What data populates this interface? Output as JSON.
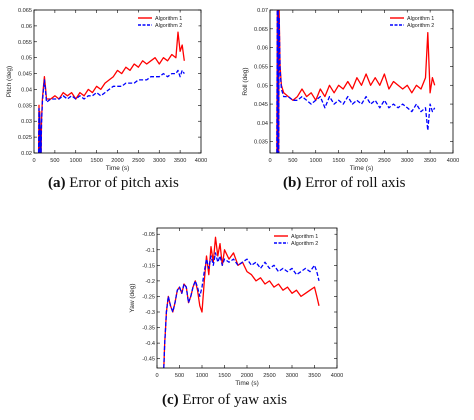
{
  "chart_data": [
    {
      "type": "line",
      "panel": "a",
      "caption_tag": "(a)",
      "caption_text": "Error of pitch axis",
      "xlabel": "Time (s)",
      "ylabel": "Pitch (deg)",
      "xlim": [
        0,
        4000
      ],
      "ylim": [
        0.02,
        0.065
      ],
      "xticks": [
        0,
        500,
        1000,
        1500,
        2000,
        2500,
        3000,
        3500,
        4000
      ],
      "yticks": [
        0.02,
        0.025,
        0.03,
        0.035,
        0.04,
        0.045,
        0.05,
        0.055,
        0.06,
        0.065
      ],
      "xtick_labels": [
        "0",
        "500",
        "1000",
        "1500",
        "2000",
        "2500",
        "3000",
        "3500",
        "4000"
      ],
      "ytick_labels": [
        "0.02",
        "0.025",
        "0.03",
        "0.035",
        "0.04",
        "0.045",
        "0.05",
        "0.055",
        "0.06",
        "0.065"
      ],
      "legend_position": "top-right",
      "grid": false,
      "series": [
        {
          "name": "Algorithm 1",
          "color": "#ff0000",
          "dash": "solid",
          "x": [
            110,
            120,
            130,
            140,
            150,
            160,
            170,
            180,
            200,
            220,
            250,
            280,
            300,
            400,
            500,
            600,
            700,
            800,
            900,
            1000,
            1100,
            1200,
            1300,
            1400,
            1500,
            1600,
            1700,
            1800,
            1900,
            2000,
            2100,
            2200,
            2300,
            2400,
            2500,
            2600,
            2700,
            2800,
            2900,
            3000,
            3100,
            3200,
            3300,
            3400,
            3450,
            3500,
            3550,
            3600
          ],
          "y": [
            0.02,
            0.035,
            0.02,
            0.033,
            0.02,
            0.028,
            0.02,
            0.03,
            0.037,
            0.04,
            0.044,
            0.04,
            0.037,
            0.037,
            0.038,
            0.037,
            0.039,
            0.038,
            0.039,
            0.037,
            0.039,
            0.038,
            0.04,
            0.039,
            0.041,
            0.04,
            0.042,
            0.043,
            0.044,
            0.046,
            0.045,
            0.047,
            0.046,
            0.048,
            0.047,
            0.049,
            0.048,
            0.049,
            0.05,
            0.048,
            0.05,
            0.049,
            0.051,
            0.05,
            0.058,
            0.052,
            0.054,
            0.049
          ]
        },
        {
          "name": "Algorithm 2",
          "color": "#0000ff",
          "dash": "dashed",
          "x": [
            110,
            120,
            130,
            140,
            150,
            160,
            170,
            180,
            200,
            220,
            250,
            280,
            300,
            400,
            500,
            600,
            700,
            800,
            900,
            1000,
            1100,
            1200,
            1300,
            1400,
            1500,
            1600,
            1700,
            1800,
            1900,
            2000,
            2100,
            2200,
            2300,
            2400,
            2500,
            2600,
            2700,
            2800,
            2900,
            3000,
            3100,
            3200,
            3300,
            3400,
            3450,
            3500,
            3550,
            3600
          ],
          "y": [
            0.02,
            0.034,
            0.02,
            0.032,
            0.02,
            0.027,
            0.02,
            0.029,
            0.036,
            0.039,
            0.043,
            0.039,
            0.036,
            0.037,
            0.037,
            0.037,
            0.038,
            0.037,
            0.038,
            0.037,
            0.038,
            0.037,
            0.038,
            0.038,
            0.039,
            0.038,
            0.039,
            0.04,
            0.041,
            0.041,
            0.041,
            0.042,
            0.042,
            0.042,
            0.043,
            0.043,
            0.043,
            0.044,
            0.044,
            0.044,
            0.045,
            0.044,
            0.045,
            0.045,
            0.046,
            0.044,
            0.046,
            0.045
          ]
        }
      ]
    },
    {
      "type": "line",
      "panel": "b",
      "caption_tag": "(b)",
      "caption_text": "Error of roll axis",
      "xlabel": "Time (s)",
      "ylabel": "Roll (deg)",
      "xlim": [
        0,
        4000
      ],
      "ylim": [
        0.032,
        0.07
      ],
      "xticks": [
        0,
        500,
        1000,
        1500,
        2000,
        2500,
        3000,
        3500,
        4000
      ],
      "yticks": [
        0.035,
        0.04,
        0.045,
        0.05,
        0.055,
        0.06,
        0.065,
        0.07
      ],
      "xtick_labels": [
        "0",
        "500",
        "1000",
        "1500",
        "2000",
        "2500",
        "3000",
        "3500",
        "4000"
      ],
      "ytick_labels": [
        "0.035",
        "0.04",
        "0.045",
        "0.05",
        "0.055",
        "0.06",
        "0.065",
        "0.07"
      ],
      "legend_position": "top-right",
      "grid": false,
      "series": [
        {
          "name": "Algorithm 1",
          "color": "#ff0000",
          "dash": "solid",
          "x": [
            150,
            160,
            170,
            180,
            190,
            200,
            220,
            250,
            300,
            400,
            500,
            600,
            700,
            800,
            900,
            1000,
            1100,
            1200,
            1300,
            1400,
            1500,
            1600,
            1700,
            1800,
            1900,
            2000,
            2100,
            2200,
            2300,
            2400,
            2500,
            2600,
            2700,
            2800,
            2900,
            3000,
            3100,
            3200,
            3300,
            3400,
            3450,
            3500,
            3550,
            3600
          ],
          "y": [
            0.032,
            0.07,
            0.032,
            0.07,
            0.032,
            0.07,
            0.055,
            0.05,
            0.048,
            0.047,
            0.046,
            0.047,
            0.049,
            0.047,
            0.048,
            0.046,
            0.049,
            0.047,
            0.05,
            0.048,
            0.05,
            0.049,
            0.051,
            0.049,
            0.052,
            0.05,
            0.053,
            0.05,
            0.052,
            0.05,
            0.053,
            0.049,
            0.051,
            0.05,
            0.049,
            0.05,
            0.048,
            0.05,
            0.049,
            0.052,
            0.064,
            0.048,
            0.052,
            0.05
          ]
        },
        {
          "name": "Algorithm 2",
          "color": "#0000ff",
          "dash": "dashed",
          "x": [
            150,
            160,
            170,
            180,
            190,
            200,
            220,
            250,
            300,
            400,
            500,
            600,
            700,
            800,
            900,
            1000,
            1100,
            1200,
            1300,
            1400,
            1500,
            1600,
            1700,
            1800,
            1900,
            2000,
            2100,
            2200,
            2300,
            2400,
            2500,
            2600,
            2700,
            2800,
            2900,
            3000,
            3100,
            3200,
            3300,
            3400,
            3450,
            3500,
            3550,
            3600
          ],
          "y": [
            0.032,
            0.07,
            0.032,
            0.07,
            0.032,
            0.068,
            0.054,
            0.049,
            0.047,
            0.047,
            0.046,
            0.046,
            0.047,
            0.046,
            0.045,
            0.046,
            0.047,
            0.044,
            0.047,
            0.045,
            0.046,
            0.045,
            0.047,
            0.045,
            0.046,
            0.045,
            0.047,
            0.045,
            0.046,
            0.044,
            0.046,
            0.044,
            0.045,
            0.044,
            0.045,
            0.044,
            0.043,
            0.045,
            0.043,
            0.044,
            0.038,
            0.045,
            0.043,
            0.044
          ]
        }
      ]
    },
    {
      "type": "line",
      "panel": "c",
      "caption_tag": "(c)",
      "caption_text": "Error of yaw axis",
      "xlabel": "Time (s)",
      "ylabel": "Yaw (deg)",
      "xlim": [
        0,
        4000
      ],
      "ylim": [
        -0.48,
        -0.03
      ],
      "xticks": [
        0,
        500,
        1000,
        1500,
        2000,
        2500,
        3000,
        3500,
        4000
      ],
      "yticks": [
        -0.45,
        -0.4,
        -0.35,
        -0.3,
        -0.25,
        -0.2,
        -0.15,
        -0.1,
        -0.05
      ],
      "xtick_labels": [
        "0",
        "500",
        "1000",
        "1500",
        "2000",
        "2500",
        "3000",
        "3500",
        "4000"
      ],
      "ytick_labels": [
        "-0.45",
        "-0.4",
        "-0.35",
        "-0.3",
        "-0.25",
        "-0.2",
        "-0.15",
        "-0.1",
        "-0.05"
      ],
      "legend_position": "top-right",
      "grid": false,
      "series": [
        {
          "name": "Algorithm 1",
          "color": "#ff0000",
          "dash": "solid",
          "x": [
            150,
            170,
            190,
            210,
            250,
            300,
            350,
            400,
            450,
            500,
            550,
            600,
            650,
            700,
            750,
            800,
            850,
            900,
            950,
            1000,
            1050,
            1100,
            1150,
            1200,
            1250,
            1300,
            1350,
            1400,
            1450,
            1500,
            1600,
            1700,
            1800,
            1900,
            2000,
            2100,
            2200,
            2300,
            2400,
            2500,
            2600,
            2700,
            2800,
            2900,
            3000,
            3100,
            3200,
            3300,
            3400,
            3500,
            3550,
            3600
          ],
          "y": [
            -0.48,
            -0.4,
            -0.35,
            -0.3,
            -0.25,
            -0.28,
            -0.3,
            -0.27,
            -0.23,
            -0.22,
            -0.24,
            -0.21,
            -0.22,
            -0.27,
            -0.25,
            -0.22,
            -0.2,
            -0.23,
            -0.28,
            -0.3,
            -0.2,
            -0.12,
            -0.18,
            -0.09,
            -0.14,
            -0.06,
            -0.12,
            -0.08,
            -0.15,
            -0.1,
            -0.13,
            -0.11,
            -0.15,
            -0.14,
            -0.17,
            -0.18,
            -0.2,
            -0.19,
            -0.21,
            -0.2,
            -0.22,
            -0.21,
            -0.23,
            -0.22,
            -0.24,
            -0.23,
            -0.25,
            -0.24,
            -0.23,
            -0.22,
            -0.25,
            -0.28
          ]
        },
        {
          "name": "Algorithm 2",
          "color": "#0000ff",
          "dash": "dashed",
          "x": [
            150,
            170,
            190,
            210,
            250,
            300,
            350,
            400,
            450,
            500,
            550,
            600,
            650,
            700,
            750,
            800,
            850,
            900,
            950,
            1000,
            1050,
            1100,
            1150,
            1200,
            1250,
            1300,
            1350,
            1400,
            1450,
            1500,
            1600,
            1700,
            1800,
            1900,
            2000,
            2100,
            2200,
            2300,
            2400,
            2500,
            2600,
            2700,
            2800,
            2900,
            3000,
            3100,
            3200,
            3300,
            3400,
            3500,
            3550,
            3600
          ],
          "y": [
            -0.48,
            -0.4,
            -0.35,
            -0.3,
            -0.25,
            -0.28,
            -0.3,
            -0.27,
            -0.23,
            -0.22,
            -0.24,
            -0.21,
            -0.22,
            -0.27,
            -0.25,
            -0.22,
            -0.2,
            -0.22,
            -0.25,
            -0.22,
            -0.17,
            -0.13,
            -0.16,
            -0.12,
            -0.15,
            -0.11,
            -0.14,
            -0.12,
            -0.15,
            -0.13,
            -0.14,
            -0.13,
            -0.15,
            -0.14,
            -0.13,
            -0.15,
            -0.14,
            -0.16,
            -0.14,
            -0.16,
            -0.15,
            -0.17,
            -0.16,
            -0.17,
            -0.16,
            -0.18,
            -0.17,
            -0.16,
            -0.17,
            -0.15,
            -0.17,
            -0.2
          ]
        }
      ]
    }
  ]
}
